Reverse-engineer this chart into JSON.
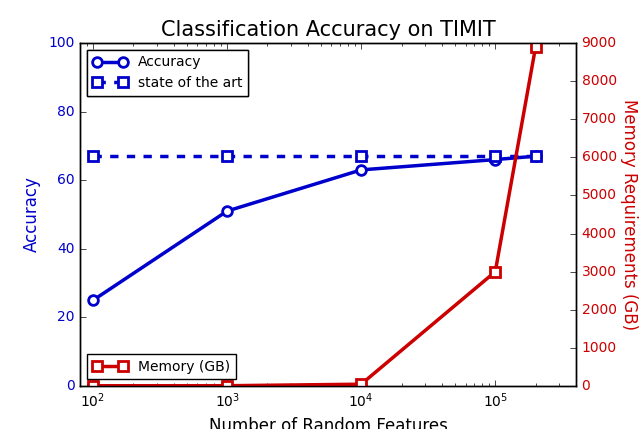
{
  "title": "Classification Accuracy on TIMIT",
  "xlabel": "Number of Random Features",
  "ylabel_left": "Accuracy",
  "ylabel_right": "Memory Requirements (GB)",
  "accuracy_x": [
    100,
    1000,
    10000,
    100000,
    200000
  ],
  "accuracy_y": [
    25,
    51,
    63,
    66,
    67
  ],
  "sota_x": [
    100,
    1000,
    10000,
    100000,
    200000
  ],
  "sota_y": [
    67,
    67,
    67,
    67,
    67
  ],
  "memory_x": [
    100,
    1000,
    10000,
    100000,
    200000
  ],
  "memory_y": [
    10,
    10,
    50,
    3000,
    8900
  ],
  "acc_color": "#0000cc",
  "sota_color": "#0000cc",
  "mem_color": "#cc0000",
  "ylim_left": [
    0,
    100
  ],
  "ylim_right": [
    0,
    9000
  ],
  "xlim": [
    80,
    400000
  ],
  "yticks_left": [
    0,
    20,
    40,
    60,
    80,
    100
  ],
  "yticks_right": [
    0,
    1000,
    2000,
    3000,
    4000,
    5000,
    6000,
    7000,
    8000,
    9000
  ],
  "title_fontsize": 15,
  "label_fontsize": 12,
  "tick_fontsize": 10,
  "legend_fontsize": 10,
  "linewidth": 2.5,
  "markersize": 7
}
